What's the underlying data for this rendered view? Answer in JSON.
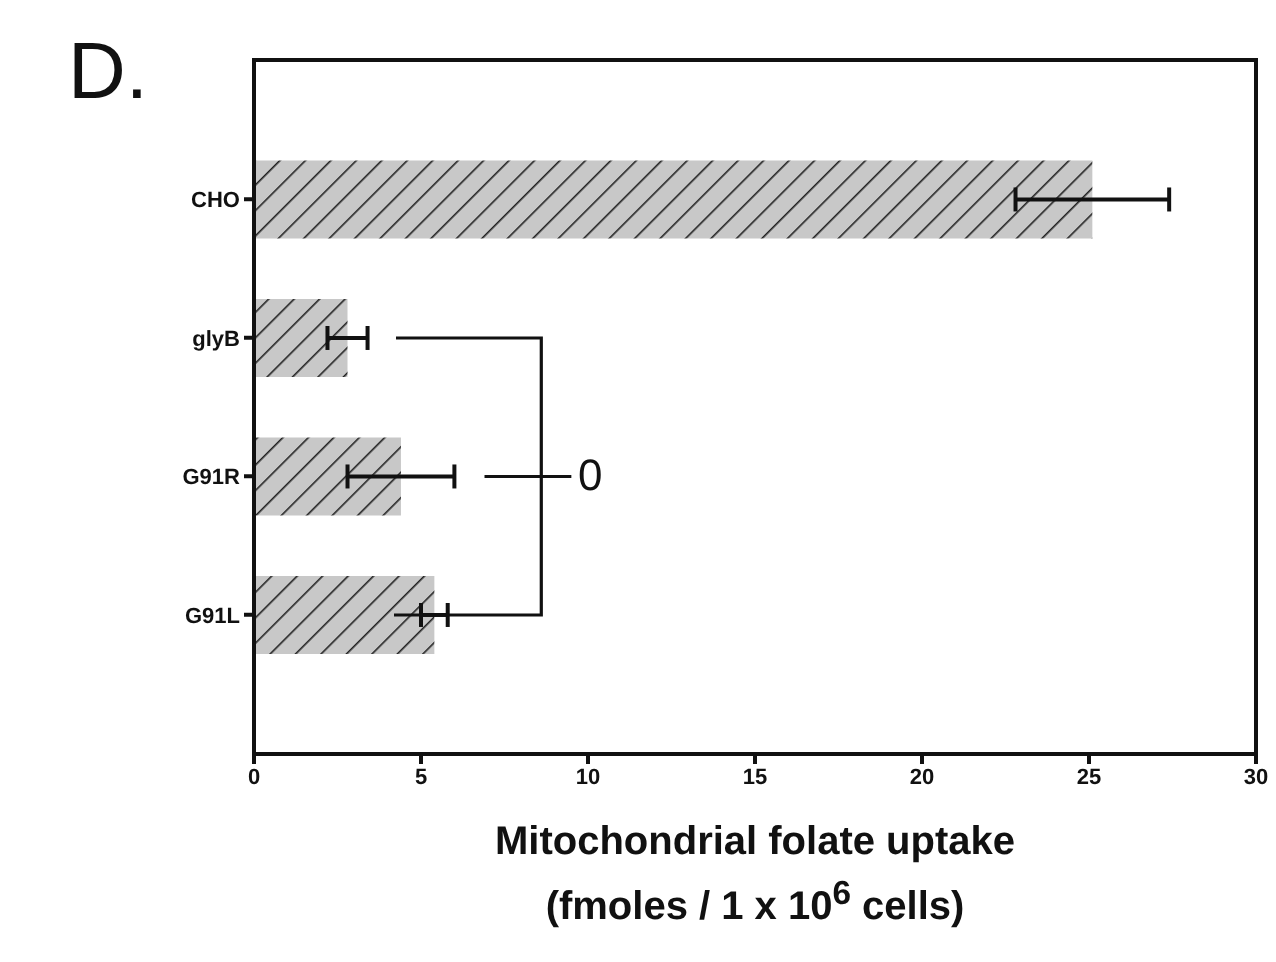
{
  "chart_data": {
    "type": "bar",
    "orientation": "horizontal",
    "title": "D.",
    "xlabel": "Mitochondrial folate uptake\n(fmoles / 1 x 10$^{6}$ cells)",
    "categories": [
      "CHO",
      "glyB",
      "G91R",
      "G91L"
    ],
    "values": [
      25.1,
      2.8,
      4.4,
      5.4
    ],
    "errors": [
      2.3,
      0.6,
      1.6,
      0.4
    ],
    "color": "#c8c8c8",
    "xlim": [
      0,
      30
    ],
    "xticks": [
      0,
      5,
      10,
      15,
      20,
      25,
      30
    ],
    "annotations": [
      "0"
    ]
  }
}
